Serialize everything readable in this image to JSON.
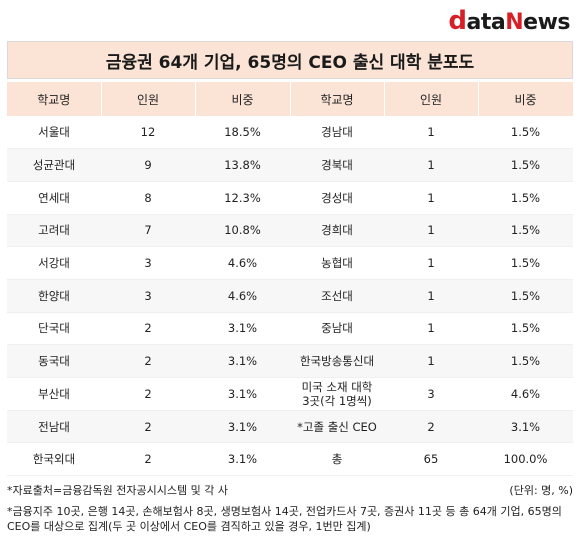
{
  "logo": {
    "d": "d",
    "mid": "ata",
    "n": "N",
    "rest": "ews"
  },
  "title": "금융권 64개 기업, 65명의 CEO 출신 대학 분포도",
  "headers": [
    "학교명",
    "인원",
    "비중",
    "학교명",
    "인원",
    "비중"
  ],
  "rows": [
    [
      "서울대",
      "12",
      "18.5%",
      "경남대",
      "1",
      "1.5%"
    ],
    [
      "성균관대",
      "9",
      "13.8%",
      "경북대",
      "1",
      "1.5%"
    ],
    [
      "연세대",
      "8",
      "12.3%",
      "경성대",
      "1",
      "1.5%"
    ],
    [
      "고려대",
      "7",
      "10.8%",
      "경희대",
      "1",
      "1.5%"
    ],
    [
      "서강대",
      "3",
      "4.6%",
      "농협대",
      "1",
      "1.5%"
    ],
    [
      "한양대",
      "3",
      "4.6%",
      "조선대",
      "1",
      "1.5%"
    ],
    [
      "단국대",
      "2",
      "3.1%",
      "중남대",
      "1",
      "1.5%"
    ],
    [
      "동국대",
      "2",
      "3.1%",
      "한국방송통신대",
      "1",
      "1.5%"
    ],
    [
      "부산대",
      "2",
      "3.1%",
      "미국 소재 대학\n3곳(각 1명씩)",
      "3",
      "4.6%"
    ],
    [
      "전남대",
      "2",
      "3.1%",
      "*고졸 출신 CEO",
      "2",
      "3.1%"
    ],
    [
      "한국외대",
      "2",
      "3.1%",
      "총",
      "65",
      "100.0%"
    ]
  ],
  "footer": {
    "source": "*자료출처=금융감독원 전자공시시스템 및 각 사",
    "unit": "(단위: 명, %)",
    "note": "*금융지주 10곳, 은행 14곳, 손해보험사 8곳, 생명보험사 14곳, 전업카드사 7곳, 증권사 11곳 등  총 64개 기업, 65명의 CEO를 대상으로 집계(두 곳 이상에서 CEO를 겸직하고 있을 경우, 1번만 집계)"
  }
}
